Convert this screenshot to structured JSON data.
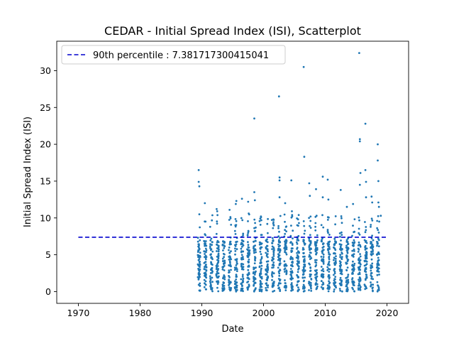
{
  "chart_data": {
    "type": "scatter",
    "title": "CEDAR - Initial Spread Index (ISI), Scatterplot",
    "xlabel": "Date",
    "ylabel": "Initial Spread Index (ISI)",
    "xlim": [
      1966.5,
      2023.5
    ],
    "ylim": [
      -1.6,
      34.0
    ],
    "x_ticks": [
      1970,
      1980,
      1990,
      2000,
      2010,
      2020
    ],
    "y_ticks": [
      0,
      5,
      10,
      15,
      20,
      25,
      30
    ],
    "legend": {
      "position": "top-left",
      "entries": [
        "90th percentile : 7.381717300415041"
      ]
    },
    "reference_line": {
      "name": "90th percentile : 7.381717300415041",
      "y": 7.381717300415041,
      "x": [
        1970,
        2020
      ],
      "style": "dashed",
      "color": "#0000cd"
    },
    "series": [
      {
        "color": "#1f77b4",
        "x_range": [
          1989.3,
          2019.0
        ],
        "seasons_per_year": {
          "start": 0.35,
          "end": 0.75
        },
        "typical_range": [
          0,
          7
        ],
        "high_values": [
          {
            "x": 1989.5,
            "y": 16.5
          },
          {
            "x": 1989.5,
            "y": 14.9
          },
          {
            "x": 1989.6,
            "y": 14.3
          },
          {
            "x": 1989.6,
            "y": 10.5
          },
          {
            "x": 1990.5,
            "y": 12.0
          },
          {
            "x": 1990.6,
            "y": 9.5
          },
          {
            "x": 1992.4,
            "y": 11.2
          },
          {
            "x": 1992.5,
            "y": 10.9
          },
          {
            "x": 1994.5,
            "y": 11.1
          },
          {
            "x": 1995.5,
            "y": 11.9
          },
          {
            "x": 1995.6,
            "y": 12.3
          },
          {
            "x": 1996.5,
            "y": 12.6
          },
          {
            "x": 1997.5,
            "y": 12.2
          },
          {
            "x": 1997.6,
            "y": 10.6
          },
          {
            "x": 1998.5,
            "y": 23.5
          },
          {
            "x": 1998.5,
            "y": 13.5
          },
          {
            "x": 1998.6,
            "y": 12.4
          },
          {
            "x": 1999.6,
            "y": 10.1
          },
          {
            "x": 2001.6,
            "y": 9.8
          },
          {
            "x": 2002.5,
            "y": 26.5
          },
          {
            "x": 2002.6,
            "y": 15.5
          },
          {
            "x": 2002.6,
            "y": 15.1
          },
          {
            "x": 2002.6,
            "y": 12.8
          },
          {
            "x": 2003.5,
            "y": 12.0
          },
          {
            "x": 2004.5,
            "y": 15.1
          },
          {
            "x": 2004.6,
            "y": 10.9
          },
          {
            "x": 2006.5,
            "y": 30.5
          },
          {
            "x": 2006.6,
            "y": 18.3
          },
          {
            "x": 2007.4,
            "y": 14.7
          },
          {
            "x": 2007.5,
            "y": 13.0
          },
          {
            "x": 2008.5,
            "y": 13.9
          },
          {
            "x": 2008.6,
            "y": 10.3
          },
          {
            "x": 2009.6,
            "y": 15.6
          },
          {
            "x": 2009.6,
            "y": 12.8
          },
          {
            "x": 2010.4,
            "y": 15.2
          },
          {
            "x": 2010.5,
            "y": 12.5
          },
          {
            "x": 2012.5,
            "y": 13.8
          },
          {
            "x": 2013.5,
            "y": 11.5
          },
          {
            "x": 2014.5,
            "y": 11.9
          },
          {
            "x": 2015.5,
            "y": 32.4
          },
          {
            "x": 2015.6,
            "y": 20.7
          },
          {
            "x": 2015.6,
            "y": 20.4
          },
          {
            "x": 2015.7,
            "y": 16.1
          },
          {
            "x": 2015.6,
            "y": 14.5
          },
          {
            "x": 2016.5,
            "y": 22.8
          },
          {
            "x": 2016.5,
            "y": 16.5
          },
          {
            "x": 2016.6,
            "y": 14.9
          },
          {
            "x": 2016.6,
            "y": 12.8
          },
          {
            "x": 2017.5,
            "y": 12.9
          },
          {
            "x": 2017.6,
            "y": 12.1
          },
          {
            "x": 2018.5,
            "y": 20.0
          },
          {
            "x": 2018.5,
            "y": 17.8
          },
          {
            "x": 2018.6,
            "y": 15.0
          },
          {
            "x": 2018.6,
            "y": 12.1
          },
          {
            "x": 2018.7,
            "y": 11.5
          },
          {
            "x": 2019.0,
            "y": 10.3
          }
        ]
      }
    ]
  }
}
